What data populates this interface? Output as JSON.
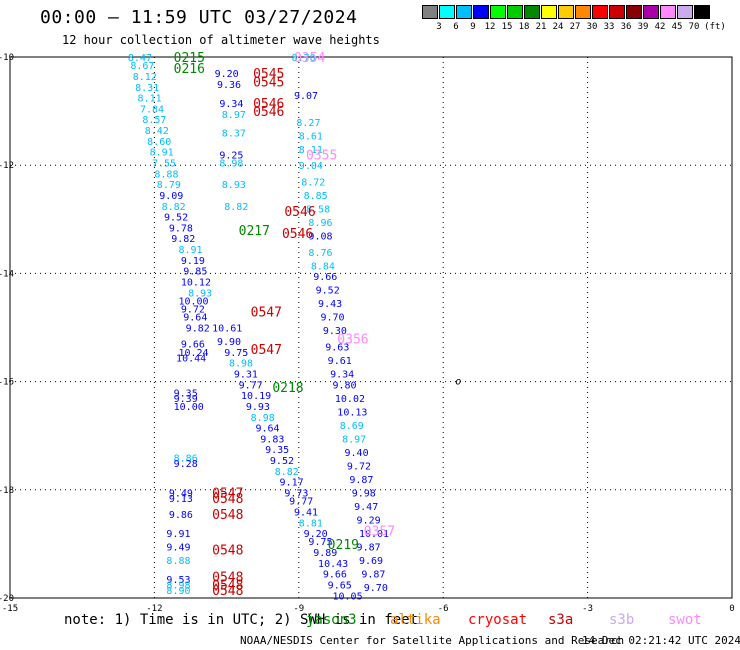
{
  "header": {
    "title": "00:00 — 11:59 UTC 03/27/2024",
    "subtitle": "12 hour collection of altimeter wave heights"
  },
  "legend": {
    "unit": "(ft)",
    "colors": [
      "#808080",
      "#00ffff",
      "#00bfff",
      "#0000ff",
      "#00ff00",
      "#00cc00",
      "#008800",
      "#ffff00",
      "#ffcc00",
      "#ff8800",
      "#ff0000",
      "#cc0000",
      "#880000",
      "#aa00aa",
      "#ff88ff",
      "#ccaaee",
      "#000000"
    ],
    "labels": [
      "3",
      "6",
      "9",
      "12",
      "15",
      "18",
      "21",
      "24",
      "27",
      "30",
      "33",
      "36",
      "39",
      "42",
      "45",
      "70"
    ]
  },
  "chart_data": {
    "type": "scatter",
    "xlim": [
      -15,
      0
    ],
    "ylim": [
      -20,
      -10
    ],
    "xticks": [
      "-15",
      "-12",
      "-9",
      "-6",
      "-3",
      "0"
    ],
    "yticks": [
      "-10",
      "-12",
      "-14",
      "-16",
      "-18",
      "-20"
    ],
    "grid": true,
    "passes": [
      {
        "label": "0215",
        "x": -11.6,
        "y": -10.0,
        "color": "#008800"
      },
      {
        "label": "0216",
        "x": -11.6,
        "y": -10.2,
        "color": "#008800"
      },
      {
        "label": "0354",
        "x": -9.1,
        "y": -10.0,
        "color": "#ff88ff"
      },
      {
        "label": "0545",
        "x": -9.95,
        "y": -10.3,
        "color": "#cc0000"
      },
      {
        "label": "0545",
        "x": -9.95,
        "y": -10.45,
        "color": "#cc0000"
      },
      {
        "label": "0546",
        "x": -9.95,
        "y": -10.85,
        "color": "#cc0000"
      },
      {
        "label": "0546",
        "x": -9.95,
        "y": -11.0,
        "color": "#cc0000"
      },
      {
        "label": "0355",
        "x": -8.85,
        "y": -11.8,
        "color": "#ff88ff"
      },
      {
        "label": "0546",
        "x": -9.3,
        "y": -12.85,
        "color": "#cc0000"
      },
      {
        "label": "0217",
        "x": -10.25,
        "y": -13.2,
        "color": "#008800"
      },
      {
        "label": "0546",
        "x": -9.35,
        "y": -13.25,
        "color": "#cc0000"
      },
      {
        "label": "0547",
        "x": -10.0,
        "y": -14.7,
        "color": "#cc0000"
      },
      {
        "label": "0356",
        "x": -8.2,
        "y": -15.2,
        "color": "#ff88ff"
      },
      {
        "label": "0547",
        "x": -10.0,
        "y": -15.4,
        "color": "#cc0000"
      },
      {
        "label": "0218",
        "x": -9.55,
        "y": -16.1,
        "color": "#008800"
      },
      {
        "label": "0547",
        "x": -10.8,
        "y": -18.05,
        "color": "#cc0000"
      },
      {
        "label": "0548",
        "x": -10.8,
        "y": -18.15,
        "color": "#cc0000"
      },
      {
        "label": "0548",
        "x": -10.8,
        "y": -18.45,
        "color": "#cc0000"
      },
      {
        "label": "0357",
        "x": -7.65,
        "y": -18.75,
        "color": "#ff88ff"
      },
      {
        "label": "0219",
        "x": -8.4,
        "y": -19.0,
        "color": "#008800"
      },
      {
        "label": "0548",
        "x": -10.8,
        "y": -19.1,
        "color": "#cc0000"
      },
      {
        "label": "0548",
        "x": -10.8,
        "y": -19.6,
        "color": "#cc0000"
      },
      {
        "label": "0548",
        "x": -10.8,
        "y": -19.75,
        "color": "#cc0000"
      },
      {
        "label": "0548",
        "x": -10.8,
        "y": -19.85,
        "color": "#cc0000"
      }
    ],
    "values": [
      {
        "v": "8.47",
        "x": -12.55,
        "y": -10.0,
        "color": "#00bfff"
      },
      {
        "v": "8.67",
        "x": -12.5,
        "y": -10.15,
        "color": "#00bfff"
      },
      {
        "v": "8.12",
        "x": -12.45,
        "y": -10.35,
        "color": "#00bfff"
      },
      {
        "v": "8.31",
        "x": -12.4,
        "y": -10.55,
        "color": "#00bfff"
      },
      {
        "v": "8.11",
        "x": -12.35,
        "y": -10.75,
        "color": "#00bfff"
      },
      {
        "v": "7.84",
        "x": -12.3,
        "y": -10.95,
        "color": "#00bfff"
      },
      {
        "v": "8.57",
        "x": -12.25,
        "y": -11.15,
        "color": "#00bfff"
      },
      {
        "v": "8.42",
        "x": -12.2,
        "y": -11.35,
        "color": "#00bfff"
      },
      {
        "v": "8.60",
        "x": -12.15,
        "y": -11.55,
        "color": "#00bfff"
      },
      {
        "v": "8.91",
        "x": -12.1,
        "y": -11.75,
        "color": "#00bfff"
      },
      {
        "v": "7.55",
        "x": -12.05,
        "y": -11.95,
        "color": "#00bfff"
      },
      {
        "v": "8.88",
        "x": -12.0,
        "y": -12.15,
        "color": "#00bfff"
      },
      {
        "v": "8.79",
        "x": -11.95,
        "y": -12.35,
        "color": "#00bfff"
      },
      {
        "v": "9.09",
        "x": -11.9,
        "y": -12.55,
        "color": "#0000ff"
      },
      {
        "v": "8.82",
        "x": -11.85,
        "y": -12.75,
        "color": "#00bfff"
      },
      {
        "v": "9.52",
        "x": -11.8,
        "y": -12.95,
        "color": "#0000ff"
      },
      {
        "v": "9.78",
        "x": -11.7,
        "y": -13.15,
        "color": "#0000ff"
      },
      {
        "v": "9.82",
        "x": -11.65,
        "y": -13.35,
        "color": "#0000ff"
      },
      {
        "v": "8.91",
        "x": -11.5,
        "y": -13.55,
        "color": "#00bfff"
      },
      {
        "v": "9.19",
        "x": -11.45,
        "y": -13.75,
        "color": "#0000ff"
      },
      {
        "v": "9.85",
        "x": -11.4,
        "y": -13.95,
        "color": "#0000ff"
      },
      {
        "v": "10.12",
        "x": -11.45,
        "y": -14.15,
        "color": "#0000ff"
      },
      {
        "v": "8.93",
        "x": -11.3,
        "y": -14.35,
        "color": "#00bfff"
      },
      {
        "v": "10.00",
        "x": -11.5,
        "y": -14.5,
        "color": "#0000ff"
      },
      {
        "v": "9.72",
        "x": -11.45,
        "y": -14.65,
        "color": "#0000ff"
      },
      {
        "v": "9.64",
        "x": -11.4,
        "y": -14.8,
        "color": "#0000ff"
      },
      {
        "v": "9.82",
        "x": -11.35,
        "y": -15.0,
        "color": "#0000ff"
      },
      {
        "v": "10.61",
        "x": -10.8,
        "y": -15.0,
        "color": "#0000ff"
      },
      {
        "v": "9.90",
        "x": -10.7,
        "y": -15.25,
        "color": "#0000ff"
      },
      {
        "v": "9.66",
        "x": -11.45,
        "y": -15.3,
        "color": "#0000ff"
      },
      {
        "v": "10.24",
        "x": -11.5,
        "y": -15.45,
        "color": "#0000ff"
      },
      {
        "v": "10.44",
        "x": -11.55,
        "y": -15.55,
        "color": "#0000ff"
      },
      {
        "v": "9.75",
        "x": -10.55,
        "y": -15.45,
        "color": "#0000ff"
      },
      {
        "v": "8.98",
        "x": -10.45,
        "y": -15.65,
        "color": "#00bfff"
      },
      {
        "v": "9.31",
        "x": -10.35,
        "y": -15.85,
        "color": "#0000ff"
      },
      {
        "v": "9.77",
        "x": -10.25,
        "y": -16.05,
        "color": "#0000ff"
      },
      {
        "v": "10.19",
        "x": -10.2,
        "y": -16.25,
        "color": "#0000ff"
      },
      {
        "v": "9.35",
        "x": -11.6,
        "y": -16.2,
        "color": "#0000ff"
      },
      {
        "v": "9.39",
        "x": -11.6,
        "y": -16.3,
        "color": "#0000ff"
      },
      {
        "v": "10.00",
        "x": -11.6,
        "y": -16.45,
        "color": "#0000ff"
      },
      {
        "v": "9.93",
        "x": -10.1,
        "y": -16.45,
        "color": "#0000ff"
      },
      {
        "v": "8.98",
        "x": -10.0,
        "y": -16.65,
        "color": "#00bfff"
      },
      {
        "v": "9.64",
        "x": -9.9,
        "y": -16.85,
        "color": "#0000ff"
      },
      {
        "v": "9.83",
        "x": -9.8,
        "y": -17.05,
        "color": "#0000ff"
      },
      {
        "v": "9.35",
        "x": -9.7,
        "y": -17.25,
        "color": "#0000ff"
      },
      {
        "v": "9.52",
        "x": -9.6,
        "y": -17.45,
        "color": "#0000ff"
      },
      {
        "v": "8.82",
        "x": -9.5,
        "y": -17.65,
        "color": "#00bfff"
      },
      {
        "v": "9.17",
        "x": -9.4,
        "y": -17.85,
        "color": "#0000ff"
      },
      {
        "v": "9.73",
        "x": -9.3,
        "y": -18.05,
        "color": "#0000ff"
      },
      {
        "v": "9.77",
        "x": -9.2,
        "y": -18.2,
        "color": "#0000ff"
      },
      {
        "v": "9.41",
        "x": -9.1,
        "y": -18.4,
        "color": "#0000ff"
      },
      {
        "v": "8.81",
        "x": -9.0,
        "y": -18.6,
        "color": "#00bfff"
      },
      {
        "v": "9.20",
        "x": -8.9,
        "y": -18.8,
        "color": "#0000ff"
      },
      {
        "v": "9.75",
        "x": -8.8,
        "y": -18.95,
        "color": "#0000ff"
      },
      {
        "v": "9.89",
        "x": -8.7,
        "y": -19.15,
        "color": "#0000ff"
      },
      {
        "v": "10.43",
        "x": -8.6,
        "y": -19.35,
        "color": "#0000ff"
      },
      {
        "v": "9.66",
        "x": -8.5,
        "y": -19.55,
        "color": "#0000ff"
      },
      {
        "v": "9.65",
        "x": -8.4,
        "y": -19.75,
        "color": "#0000ff"
      },
      {
        "v": "10.05",
        "x": -8.3,
        "y": -19.95,
        "color": "#0000ff"
      },
      {
        "v": "9.20",
        "x": -10.75,
        "y": -10.3,
        "color": "#0000ff"
      },
      {
        "v": "9.36",
        "x": -10.7,
        "y": -10.5,
        "color": "#0000ff"
      },
      {
        "v": "9.34",
        "x": -10.65,
        "y": -10.85,
        "color": "#0000ff"
      },
      {
        "v": "8.97",
        "x": -10.6,
        "y": -11.05,
        "color": "#00bfff"
      },
      {
        "v": "8.37",
        "x": -10.6,
        "y": -11.4,
        "color": "#00bfff"
      },
      {
        "v": "9.25",
        "x": -10.65,
        "y": -11.8,
        "color": "#0000ff"
      },
      {
        "v": "8.98",
        "x": -10.65,
        "y": -11.95,
        "color": "#00bfff"
      },
      {
        "v": "8.93",
        "x": -10.6,
        "y": -12.35,
        "color": "#00bfff"
      },
      {
        "v": "8.82",
        "x": -10.55,
        "y": -12.75,
        "color": "#00bfff"
      },
      {
        "v": "8.70",
        "x": -9.15,
        "y": -10.0,
        "color": "#00bfff"
      },
      {
        "v": "9.07",
        "x": -9.1,
        "y": -10.7,
        "color": "#0000ff"
      },
      {
        "v": "8.27",
        "x": -9.05,
        "y": -11.2,
        "color": "#00bfff"
      },
      {
        "v": "8.61",
        "x": -9.0,
        "y": -11.45,
        "color": "#00bfff"
      },
      {
        "v": "8.11",
        "x": -9.0,
        "y": -11.7,
        "color": "#00bfff"
      },
      {
        "v": "9.04",
        "x": -9.0,
        "y": -12.0,
        "color": "#00bfff"
      },
      {
        "v": "8.72",
        "x": -8.95,
        "y": -12.3,
        "color": "#00bfff"
      },
      {
        "v": "8.85",
        "x": -8.9,
        "y": -12.55,
        "color": "#00bfff"
      },
      {
        "v": "8.58",
        "x": -8.85,
        "y": -12.8,
        "color": "#00bfff"
      },
      {
        "v": "8.96",
        "x": -8.8,
        "y": -13.05,
        "color": "#00bfff"
      },
      {
        "v": "9.08",
        "x": -8.8,
        "y": -13.3,
        "color": "#0000ff"
      },
      {
        "v": "8.76",
        "x": -8.8,
        "y": -13.6,
        "color": "#00bfff"
      },
      {
        "v": "8.84",
        "x": -8.75,
        "y": -13.85,
        "color": "#00bfff"
      },
      {
        "v": "9.66",
        "x": -8.7,
        "y": -14.05,
        "color": "#0000ff"
      },
      {
        "v": "9.52",
        "x": -8.65,
        "y": -14.3,
        "color": "#0000ff"
      },
      {
        "v": "9.43",
        "x": -8.6,
        "y": -14.55,
        "color": "#0000ff"
      },
      {
        "v": "9.70",
        "x": -8.55,
        "y": -14.8,
        "color": "#0000ff"
      },
      {
        "v": "9.30",
        "x": -8.5,
        "y": -15.05,
        "color": "#0000ff"
      },
      {
        "v": "9.63",
        "x": -8.45,
        "y": -15.35,
        "color": "#0000ff"
      },
      {
        "v": "9.61",
        "x": -8.4,
        "y": -15.6,
        "color": "#0000ff"
      },
      {
        "v": "9.34",
        "x": -8.35,
        "y": -15.85,
        "color": "#0000ff"
      },
      {
        "v": "9.80",
        "x": -8.3,
        "y": -16.05,
        "color": "#0000ff"
      },
      {
        "v": "10.02",
        "x": -8.25,
        "y": -16.3,
        "color": "#0000ff"
      },
      {
        "v": "10.13",
        "x": -8.2,
        "y": -16.55,
        "color": "#0000ff"
      },
      {
        "v": "8.69",
        "x": -8.15,
        "y": -16.8,
        "color": "#00bfff"
      },
      {
        "v": "8.97",
        "x": -8.1,
        "y": -17.05,
        "color": "#00bfff"
      },
      {
        "v": "9.40",
        "x": -8.05,
        "y": -17.3,
        "color": "#0000ff"
      },
      {
        "v": "9.72",
        "x": -8.0,
        "y": -17.55,
        "color": "#0000ff"
      },
      {
        "v": "9.87",
        "x": -7.95,
        "y": -17.8,
        "color": "#0000ff"
      },
      {
        "v": "9.98",
        "x": -7.9,
        "y": -18.05,
        "color": "#0000ff"
      },
      {
        "v": "9.47",
        "x": -7.85,
        "y": -18.3,
        "color": "#0000ff"
      },
      {
        "v": "9.29",
        "x": -7.8,
        "y": -18.55,
        "color": "#0000ff"
      },
      {
        "v": "10.01",
        "x": -7.75,
        "y": -18.8,
        "color": "#0000ff"
      },
      {
        "v": "9.87",
        "x": -7.8,
        "y": -19.05,
        "color": "#0000ff"
      },
      {
        "v": "9.69",
        "x": -7.75,
        "y": -19.3,
        "color": "#0000ff"
      },
      {
        "v": "9.87",
        "x": -7.7,
        "y": -19.55,
        "color": "#0000ff"
      },
      {
        "v": "9.70",
        "x": -7.65,
        "y": -19.8,
        "color": "#0000ff"
      },
      {
        "v": "8.86",
        "x": -11.6,
        "y": -17.4,
        "color": "#00bfff"
      },
      {
        "v": "9.28",
        "x": -11.6,
        "y": -17.5,
        "color": "#0000ff"
      },
      {
        "v": "9.49",
        "x": -11.7,
        "y": -18.05,
        "color": "#0000ff"
      },
      {
        "v": "9.13",
        "x": -11.7,
        "y": -18.15,
        "color": "#0000ff"
      },
      {
        "v": "9.86",
        "x": -11.7,
        "y": -18.45,
        "color": "#0000ff"
      },
      {
        "v": "9.91",
        "x": -11.75,
        "y": -18.8,
        "color": "#0000ff"
      },
      {
        "v": "9.49",
        "x": -11.75,
        "y": -19.05,
        "color": "#0000ff"
      },
      {
        "v": "8.88",
        "x": -11.75,
        "y": -19.3,
        "color": "#00bfff"
      },
      {
        "v": "9.53",
        "x": -11.75,
        "y": -19.65,
        "color": "#0000ff"
      },
      {
        "v": "8.98",
        "x": -11.75,
        "y": -19.75,
        "color": "#00bfff"
      },
      {
        "v": "8.90",
        "x": -11.75,
        "y": -19.85,
        "color": "#00bfff"
      }
    ],
    "marker": {
      "label": "o",
      "x": -5.75,
      "y": -16.0
    }
  },
  "footer": {
    "note": "note: 1) Time is in UTC; 2) SWH is in feet",
    "satellites": [
      {
        "name": "jason3",
        "color": "#008800"
      },
      {
        "name": "altika",
        "color": "#ff8800"
      },
      {
        "name": "cryosat",
        "color": "#ff0000"
      },
      {
        "name": "s3a",
        "color": "#cc0000"
      },
      {
        "name": "s3b",
        "color": "#ccaaee"
      },
      {
        "name": "swot",
        "color": "#ff88ff"
      }
    ],
    "credit": "NOAA/NESDIS Center for Satellite Applications and Research",
    "timestamp": "14 Dec 02:21:42 UTC 2024"
  }
}
